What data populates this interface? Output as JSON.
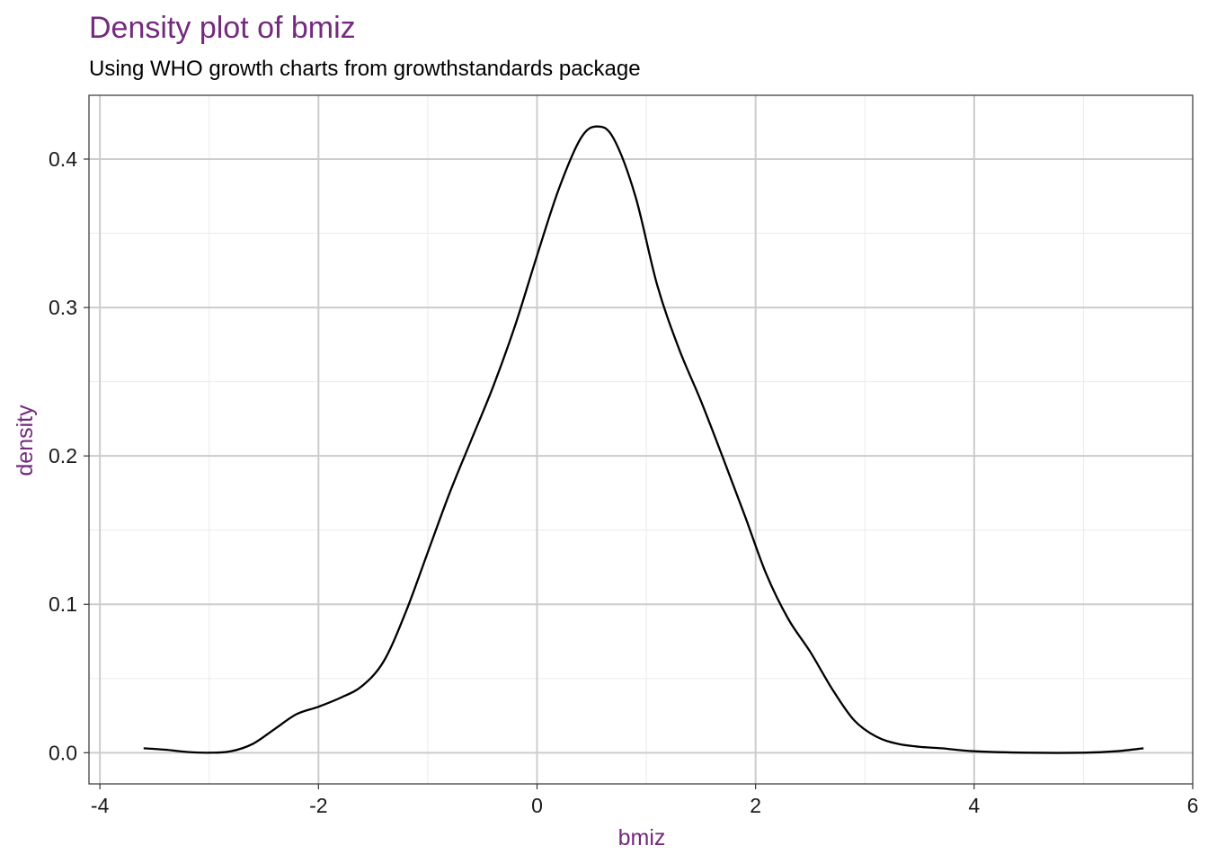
{
  "chart_data": {
    "type": "line",
    "title": "Density plot of bmiz",
    "subtitle": "Using WHO growth charts from growthstandards package",
    "xlabel": "bmiz",
    "ylabel": "density",
    "xlim": [
      -4.1,
      6.0
    ],
    "ylim": [
      -0.021,
      0.443
    ],
    "xticks": [
      -4,
      -2,
      0,
      2,
      4,
      6
    ],
    "yticks": [
      0.0,
      0.1,
      0.2,
      0.3,
      0.4
    ],
    "xtick_labels": [
      "-4",
      "-2",
      "0",
      "2",
      "4",
      "6"
    ],
    "ytick_labels": [
      "0.0",
      "0.1",
      "0.2",
      "0.3",
      "0.4"
    ],
    "grid": true,
    "legend": "none",
    "line_color": "#000000",
    "title_color": "#742a7e",
    "series": [
      {
        "x": [
          -3.6,
          -3.4,
          -3.2,
          -3.0,
          -2.8,
          -2.6,
          -2.4,
          -2.2,
          -2.0,
          -1.8,
          -1.6,
          -1.4,
          -1.2,
          -1.0,
          -0.8,
          -0.6,
          -0.4,
          -0.2,
          0.0,
          0.2,
          0.4,
          0.55,
          0.7,
          0.9,
          1.1,
          1.3,
          1.5,
          1.7,
          1.9,
          2.1,
          2.3,
          2.5,
          2.7,
          2.9,
          3.1,
          3.3,
          3.5,
          3.7,
          4.0,
          4.5,
          5.0,
          5.3,
          5.55
        ],
        "y": [
          0.003,
          0.002,
          0.0005,
          0.0,
          0.001,
          0.006,
          0.016,
          0.026,
          0.031,
          0.037,
          0.045,
          0.062,
          0.095,
          0.135,
          0.175,
          0.211,
          0.247,
          0.288,
          0.335,
          0.38,
          0.414,
          0.422,
          0.414,
          0.375,
          0.315,
          0.272,
          0.237,
          0.199,
          0.16,
          0.12,
          0.09,
          0.068,
          0.043,
          0.022,
          0.011,
          0.006,
          0.004,
          0.003,
          0.001,
          0.0,
          0.0,
          0.001,
          0.003
        ]
      }
    ]
  }
}
